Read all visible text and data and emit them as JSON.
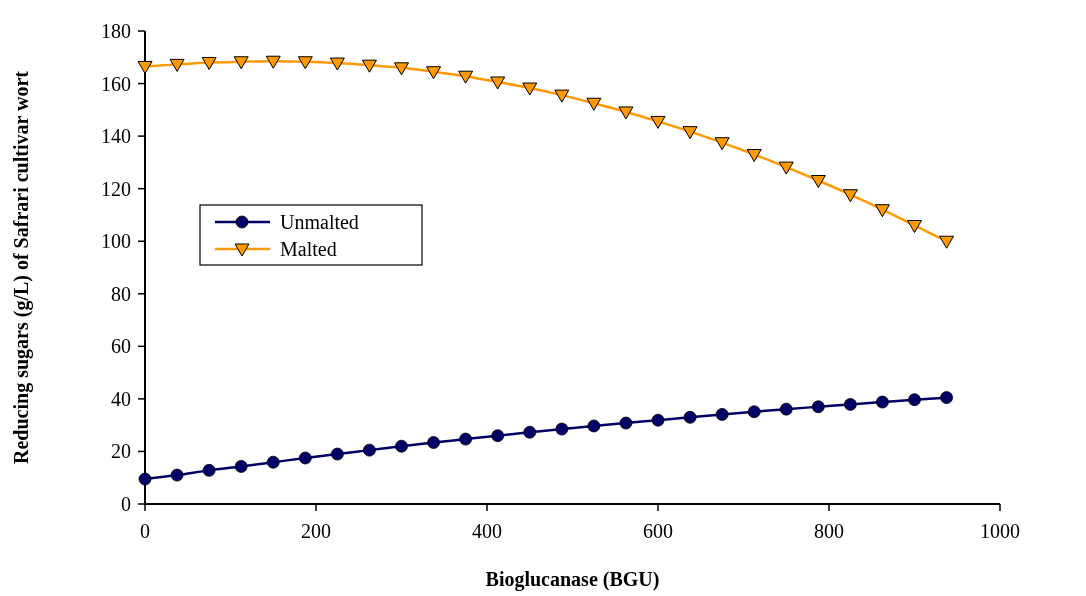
{
  "chart_data": {
    "type": "line",
    "xlabel": "Bioglucanase (BGU)",
    "ylabel": "Reducing sugars (g/L) of Safrari cultivar wort",
    "x": [
      0,
      37.5,
      75,
      112.5,
      150,
      187.5,
      225,
      262.5,
      300,
      337.5,
      375,
      412.5,
      450,
      487.5,
      525,
      562.5,
      600,
      637.5,
      675,
      712.5,
      750,
      787.5,
      825,
      862.5,
      900,
      937.5
    ],
    "series": [
      {
        "name": "Unmalted",
        "color": "#000066",
        "marker": "circle",
        "values": [
          9.5,
          11,
          12.8,
          14.3,
          15.9,
          17.5,
          19,
          20.5,
          22,
          23.4,
          24.7,
          26,
          27.3,
          28.5,
          29.7,
          30.8,
          31.9,
          33,
          34.1,
          35.1,
          36.1,
          37,
          37.9,
          38.8,
          39.7,
          40.5
        ]
      },
      {
        "name": "Malted",
        "color": "#ff9900",
        "marker": "triangle",
        "values": [
          166.5,
          167.3,
          168,
          168.3,
          168.5,
          168.3,
          167.8,
          167,
          166,
          164.5,
          162.8,
          160.6,
          158.3,
          155.6,
          152.5,
          149.2,
          145.6,
          141.7,
          137.5,
          133,
          128.2,
          123.1,
          117.7,
          112,
          106,
          100
        ]
      }
    ],
    "xlim": [
      0,
      1000
    ],
    "xticks": [
      0,
      200,
      400,
      600,
      800,
      1000
    ],
    "ylim": [
      0,
      180
    ],
    "yticks": [
      0,
      20,
      40,
      60,
      80,
      100,
      120,
      140,
      160,
      180
    ],
    "grid": false,
    "legend": "left",
    "line_style": "solid"
  }
}
